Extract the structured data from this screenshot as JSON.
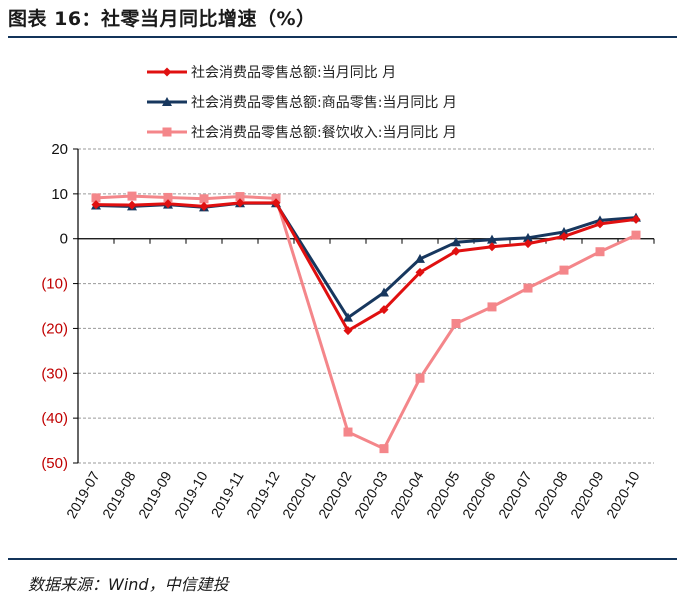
{
  "figure": {
    "title": "图表 16：社零当月同比增速（%）",
    "source": "数据来源：Wind，中信建投"
  },
  "chart_data": {
    "type": "line",
    "categories": [
      "2019-07",
      "2019-08",
      "2019-09",
      "2019-10",
      "2019-11",
      "2019-12",
      "2020-01",
      "2020-02",
      "2020-03",
      "2020-04",
      "2020-05",
      "2020-06",
      "2020-07",
      "2020-08",
      "2020-09",
      "2020-10"
    ],
    "ylim": [
      -50,
      20
    ],
    "yticks": [
      20,
      10,
      0,
      -10,
      -20,
      -30,
      -40,
      -50
    ],
    "ytick_labels": [
      "20",
      "10",
      "0",
      "(10)",
      "(20)",
      "(30)",
      "(40)",
      "(50)"
    ],
    "positive_tick_color": "#111111",
    "negative_tick_color": "#c00000",
    "grid": "horizontal-dashed",
    "legend_position": "top",
    "series": [
      {
        "name": "社会消费品零售总额:当月同比  月",
        "color": "#e01010",
        "marker": "diamond",
        "values": [
          7.6,
          7.5,
          7.8,
          7.2,
          8.0,
          8.0,
          null,
          -20.5,
          -15.8,
          -7.5,
          -2.8,
          -1.8,
          -1.1,
          0.5,
          3.3,
          4.3
        ]
      },
      {
        "name": "社会消费品零售总额:商品零售:当月同比  月",
        "color": "#17375e",
        "marker": "triangle",
        "values": [
          7.4,
          7.2,
          7.6,
          7.0,
          7.9,
          7.9,
          null,
          -17.6,
          -12.0,
          -4.5,
          -0.8,
          -0.2,
          0.2,
          1.5,
          4.1,
          4.7
        ]
      },
      {
        "name": "社会消费品零售总额:餐饮收入:当月同比  月",
        "color": "#f4868a",
        "marker": "square",
        "values": [
          9.1,
          9.5,
          9.2,
          8.9,
          9.4,
          9.0,
          null,
          -43.1,
          -46.8,
          -31.1,
          -18.9,
          -15.2,
          -11.0,
          -7.0,
          -2.9,
          0.8
        ]
      }
    ]
  }
}
